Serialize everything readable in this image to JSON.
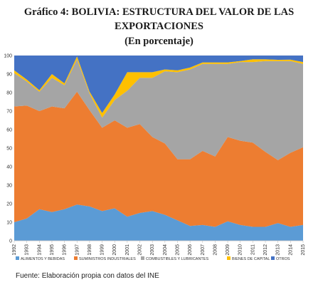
{
  "header": {
    "title_line1": "Gráfico 4: BOLIVIA: ESTRUCTURA DEL VALOR DE LAS",
    "title_line2": "EXPORTACIONES",
    "subtitle": "(En porcentaje)"
  },
  "footer": {
    "source": "Fuente: Elaboración propia con datos del INE"
  },
  "chart_data": {
    "type": "area",
    "stacked": true,
    "title": "BOLIVIA: ESTRUCTURA DEL VALOR DE LAS EXPORTACIONES",
    "subtitle": "(En porcentaje)",
    "x": [
      "1992",
      "1993",
      "1994",
      "1995",
      "1996",
      "1997",
      "1998",
      "1999",
      "2000",
      "2001",
      "2002",
      "2003",
      "2004",
      "2005",
      "2006",
      "2007",
      "2008",
      "2009",
      "2010",
      "2011",
      "2012",
      "2013",
      "2014",
      "2015"
    ],
    "ylim": [
      0,
      100
    ],
    "yticks": [
      0,
      10,
      20,
      30,
      40,
      50,
      60,
      70,
      80,
      90,
      100
    ],
    "grid": true,
    "legend_position": "bottom",
    "series": [
      {
        "name": "ALIMENTOS Y BEBIDAS",
        "color": "#5b9bd5",
        "values": [
          10,
          12,
          17,
          15.5,
          17,
          19.5,
          18.5,
          16,
          17.5,
          13,
          15,
          16,
          14,
          11,
          8,
          8.5,
          7.5,
          10.5,
          8.5,
          7.5,
          7.5,
          9.5,
          7.5,
          8.5
        ]
      },
      {
        "name": "SUMINISTROS INDUSTRIALES",
        "color": "#ed7d31",
        "values": [
          62.5,
          61,
          53,
          57,
          54.5,
          61,
          52,
          45,
          47.5,
          48,
          48,
          40,
          38.5,
          33,
          36,
          40,
          38,
          45.5,
          45.5,
          45.5,
          40.5,
          34,
          40,
          42
        ]
      },
      {
        "name": "COMBUSTIBLES Y LUBRICANTES",
        "color": "#a5a5a5",
        "values": [
          18,
          13,
          10.5,
          15.5,
          12.5,
          17.5,
          9,
          5.5,
          11,
          20,
          25,
          32,
          39,
          47,
          48.5,
          47,
          50,
          39.5,
          42.5,
          43.5,
          49,
          53.5,
          49.5,
          45
        ]
      },
      {
        "name": "BIENES DE CAPITAL",
        "color": "#ffc000",
        "values": [
          1.5,
          1,
          0.8,
          2,
          1,
          1.5,
          1,
          2.5,
          3,
          10,
          3,
          3,
          1,
          1,
          1,
          0.8,
          0.8,
          0.8,
          0.5,
          1.5,
          1,
          0.7,
          0.8,
          1
        ]
      },
      {
        "name": "OTROS",
        "color": "#4472c4",
        "values": [
          8,
          13,
          18.7,
          10,
          15,
          0.5,
          19.5,
          31,
          21,
          9,
          9,
          9,
          7.5,
          8,
          6.5,
          3.7,
          3.7,
          3.7,
          3,
          2,
          2,
          2.3,
          2.2,
          3.5
        ]
      }
    ]
  }
}
